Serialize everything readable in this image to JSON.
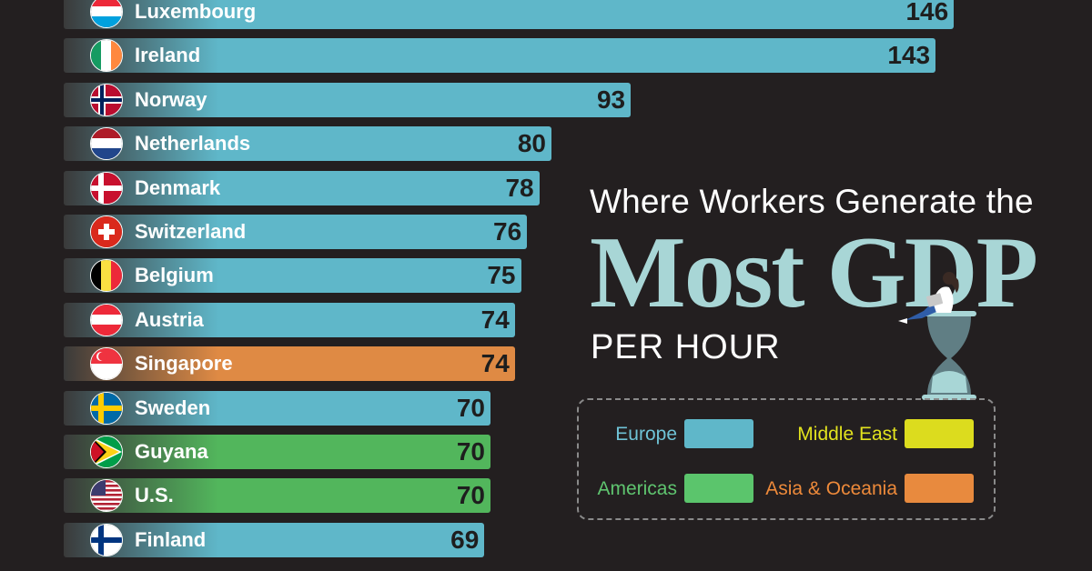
{
  "title": {
    "line1": "Where Workers Generate the",
    "main": "Most GDP",
    "sub": "PER HOUR"
  },
  "legend": [
    {
      "label": "Europe",
      "color": "#5fb7c9",
      "text_color": "#6fc3d6"
    },
    {
      "label": "Middle East",
      "color": "#dcdc1e",
      "text_color": "#e2e21e"
    },
    {
      "label": "Americas",
      "color": "#5bc56c",
      "text_color": "#5fc46f"
    },
    {
      "label": "Asia & Oceania",
      "color": "#e88a3e",
      "text_color": "#ee8a3a"
    }
  ],
  "chart_data": {
    "type": "bar",
    "orientation": "horizontal",
    "categories": [
      "Luxembourg",
      "Ireland",
      "Norway",
      "Netherlands",
      "Denmark",
      "Switzerland",
      "Belgium",
      "Austria",
      "Singapore",
      "Sweden",
      "Guyana",
      "U.S.",
      "Finland"
    ],
    "values": [
      146,
      143,
      93,
      80,
      78,
      76,
      75,
      74,
      74,
      70,
      70,
      70,
      69
    ],
    "regions": [
      "Europe",
      "Europe",
      "Europe",
      "Europe",
      "Europe",
      "Europe",
      "Europe",
      "Europe",
      "Asia & Oceania",
      "Europe",
      "Americas",
      "Americas",
      "Europe"
    ],
    "region_colors": {
      "Europe": "#5fb7c9",
      "Americas": "#52b65c",
      "Asia & Oceania": "#df8a44",
      "Middle East": "#dcdc1e"
    },
    "flags": [
      "luxembourg",
      "ireland",
      "norway",
      "netherlands",
      "denmark",
      "switzerland",
      "belgium",
      "austria",
      "singapore",
      "sweden",
      "guyana",
      "us",
      "finland"
    ],
    "title": "Where Workers Generate the Most GDP Per Hour",
    "xlabel": "",
    "ylabel": ""
  }
}
